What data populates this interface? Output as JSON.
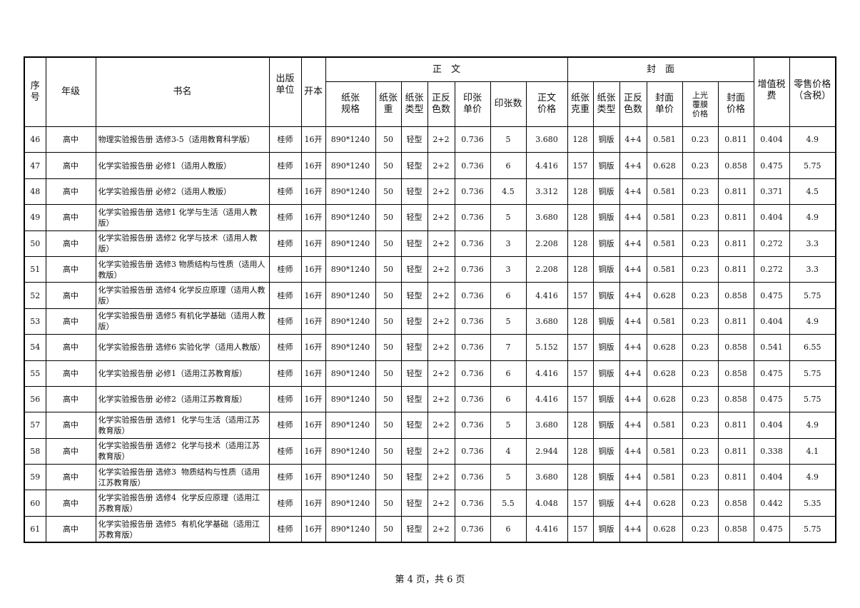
{
  "header": {
    "no": "序\n号",
    "grade": "年级",
    "title": "书名",
    "publisher": "出版\n单位",
    "format": "开本",
    "text_group": "正　文",
    "cover_group": "封　面",
    "vat": "增值税\n费",
    "retail": "零售价格\n（含税）",
    "text_cols": [
      "纸张\n规格",
      "纸张\n重",
      "纸张\n类型",
      "正反\n色数",
      "印张\n单价",
      "印张数",
      "正文\n价格"
    ],
    "cover_cols": [
      "纸张\n克重",
      "纸张\n类型",
      "正反\n色数",
      "封面\n单价",
      "上光\n覆膜\n价格",
      "封面\n价格"
    ]
  },
  "rows": [
    [
      "46",
      "高中",
      "物理实验报告册 选修3-5（适用教育科学版）",
      "桂师",
      "16开",
      "890*1240",
      "50",
      "轻型",
      "2+2",
      "0.736",
      "5",
      "3.680",
      "128",
      "铜版",
      "4+4",
      "0.581",
      "0.23",
      "0.811",
      "0.404",
      "4.9"
    ],
    [
      "47",
      "高中",
      "化学实验报告册 必修1（适用人教版）",
      "桂师",
      "16开",
      "890*1240",
      "50",
      "轻型",
      "2+2",
      "0.736",
      "6",
      "4.416",
      "157",
      "铜版",
      "4+4",
      "0.628",
      "0.23",
      "0.858",
      "0.475",
      "5.75"
    ],
    [
      "48",
      "高中",
      "化学实验报告册 必修2（适用人教版）",
      "桂师",
      "16开",
      "890*1240",
      "50",
      "轻型",
      "2+2",
      "0.736",
      "4.5",
      "3.312",
      "128",
      "铜版",
      "4+4",
      "0.581",
      "0.23",
      "0.811",
      "0.371",
      "4.5"
    ],
    [
      "49",
      "高中",
      "化学实验报告册 选修1 化学与生活（适用人教版）",
      "桂师",
      "16开",
      "890*1240",
      "50",
      "轻型",
      "2+2",
      "0.736",
      "5",
      "3.680",
      "128",
      "铜版",
      "4+4",
      "0.581",
      "0.23",
      "0.811",
      "0.404",
      "4.9"
    ],
    [
      "50",
      "高中",
      "化学实验报告册 选修2 化学与技术（适用人教版）",
      "桂师",
      "16开",
      "890*1240",
      "50",
      "轻型",
      "2+2",
      "0.736",
      "3",
      "2.208",
      "128",
      "铜版",
      "4+4",
      "0.581",
      "0.23",
      "0.811",
      "0.272",
      "3.3"
    ],
    [
      "51",
      "高中",
      "化学实验报告册 选修3 物质结构与性质（适用人教版）",
      "桂师",
      "16开",
      "890*1240",
      "50",
      "轻型",
      "2+2",
      "0.736",
      "3",
      "2.208",
      "128",
      "铜版",
      "4+4",
      "0.581",
      "0.23",
      "0.811",
      "0.272",
      "3.3"
    ],
    [
      "52",
      "高中",
      "化学实验报告册 选修4 化学反应原理（适用人教版）",
      "桂师",
      "16开",
      "890*1240",
      "50",
      "轻型",
      "2+2",
      "0.736",
      "6",
      "4.416",
      "157",
      "铜版",
      "4+4",
      "0.628",
      "0.23",
      "0.858",
      "0.475",
      "5.75"
    ],
    [
      "53",
      "高中",
      "化学实验报告册 选修5 有机化学基础（适用人教版）",
      "桂师",
      "16开",
      "890*1240",
      "50",
      "轻型",
      "2+2",
      "0.736",
      "5",
      "3.680",
      "128",
      "铜版",
      "4+4",
      "0.581",
      "0.23",
      "0.811",
      "0.404",
      "4.9"
    ],
    [
      "54",
      "高中",
      "化学实验报告册 选修6 实验化学（适用人教版）",
      "桂师",
      "16开",
      "890*1240",
      "50",
      "轻型",
      "2+2",
      "0.736",
      "7",
      "5.152",
      "157",
      "铜版",
      "4+4",
      "0.628",
      "0.23",
      "0.858",
      "0.541",
      "6.55"
    ],
    [
      "55",
      "高中",
      "化学实验报告册 必修1（适用江苏教育版）",
      "桂师",
      "16开",
      "890*1240",
      "50",
      "轻型",
      "2+2",
      "0.736",
      "6",
      "4.416",
      "157",
      "铜版",
      "4+4",
      "0.628",
      "0.23",
      "0.858",
      "0.475",
      "5.75"
    ],
    [
      "56",
      "高中",
      "化学实验报告册 必修2（适用江苏教育版）",
      "桂师",
      "16开",
      "890*1240",
      "50",
      "轻型",
      "2+2",
      "0.736",
      "6",
      "4.416",
      "157",
      "铜版",
      "4+4",
      "0.628",
      "0.23",
      "0.858",
      "0.475",
      "5.75"
    ],
    [
      "57",
      "高中",
      "化学实验报告册 选修1  化学与生活（适用江苏教育版）",
      "桂师",
      "16开",
      "890*1240",
      "50",
      "轻型",
      "2+2",
      "0.736",
      "5",
      "3.680",
      "128",
      "铜版",
      "4+4",
      "0.581",
      "0.23",
      "0.811",
      "0.404",
      "4.9"
    ],
    [
      "58",
      "高中",
      "化学实验报告册 选修2  化学与技术（适用江苏教育版）",
      "桂师",
      "16开",
      "890*1240",
      "50",
      "轻型",
      "2+2",
      "0.736",
      "4",
      "2.944",
      "128",
      "铜版",
      "4+4",
      "0.581",
      "0.23",
      "0.811",
      "0.338",
      "4.1"
    ],
    [
      "59",
      "高中",
      "化学实验报告册 选修3  物质结构与性质（适用江苏教育版）",
      "桂师",
      "16开",
      "890*1240",
      "50",
      "轻型",
      "2+2",
      "0.736",
      "5",
      "3.680",
      "128",
      "铜版",
      "4+4",
      "0.581",
      "0.23",
      "0.811",
      "0.404",
      "4.9"
    ],
    [
      "60",
      "高中",
      "化学实验报告册 选修4  化学反应原理（适用江苏教育版）",
      "桂师",
      "16开",
      "890*1240",
      "50",
      "轻型",
      "2+2",
      "0.736",
      "5.5",
      "4.048",
      "157",
      "铜版",
      "4+4",
      "0.628",
      "0.23",
      "0.858",
      "0.442",
      "5.35"
    ],
    [
      "61",
      "高中",
      "化学实验报告册 选修5  有机化学基础（适用江苏教育版）",
      "桂师",
      "16开",
      "890*1240",
      "50",
      "轻型",
      "2+2",
      "0.736",
      "6",
      "4.416",
      "157",
      "铜版",
      "4+4",
      "0.628",
      "0.23",
      "0.858",
      "0.475",
      "5.75"
    ]
  ],
  "footer": "第 4 页，共 6 页"
}
